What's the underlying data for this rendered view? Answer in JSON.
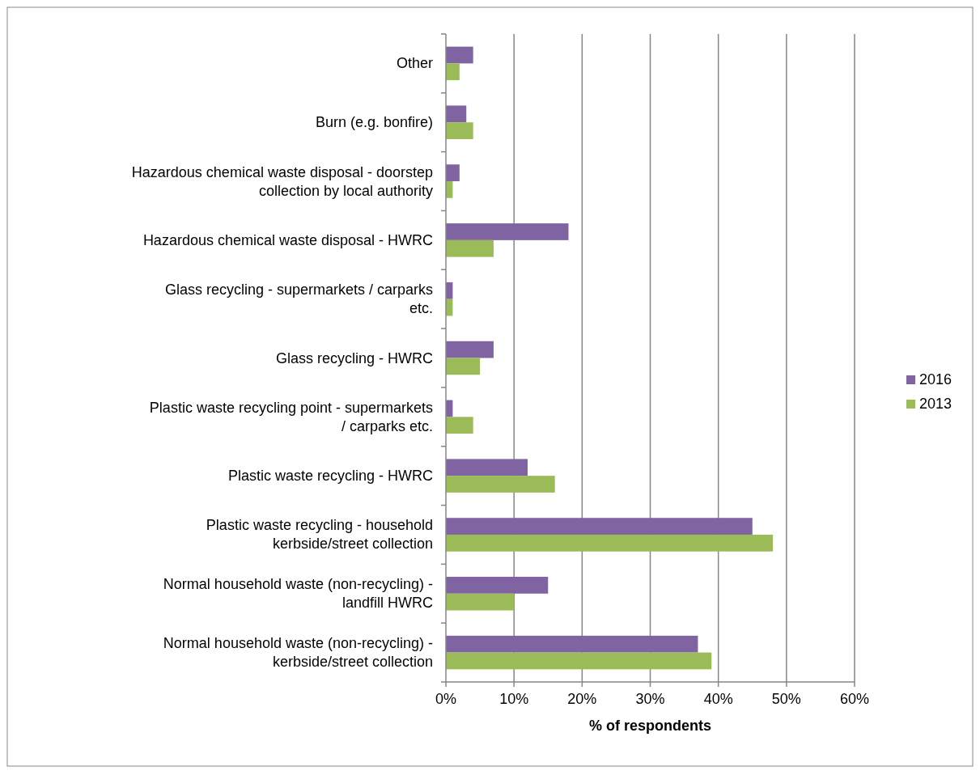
{
  "chart_data": {
    "type": "bar",
    "orientation": "horizontal",
    "xlabel": "% of respondents",
    "categories": [
      "Other",
      "Burn (e.g. bonfire)",
      "Hazardous chemical waste disposal - doorstep collection by local authority",
      "Hazardous chemical waste disposal - HWRC",
      "Glass recycling - supermarkets / carparks etc.",
      "Glass recycling - HWRC",
      "Plastic waste recycling point - supermarkets / carparks etc.",
      "Plastic waste recycling - HWRC",
      "Plastic waste recycling - household kerbside/street collection",
      "Normal household waste (non-recycling) - landfill HWRC",
      "Normal household waste (non-recycling) - kerbside/street collection"
    ],
    "series": [
      {
        "name": "2016",
        "color": "#8064a2",
        "values": [
          4,
          3,
          2,
          18,
          1,
          7,
          1,
          12,
          45,
          15,
          37
        ]
      },
      {
        "name": "2013",
        "color": "#9bbb59",
        "values": [
          2,
          4,
          1,
          7,
          1,
          5,
          4,
          16,
          48,
          10,
          39
        ]
      }
    ],
    "xlim": [
      0,
      60
    ],
    "xticks": [
      {
        "value": 0,
        "label": "0%"
      },
      {
        "value": 10,
        "label": "10%"
      },
      {
        "value": 20,
        "label": "20%"
      },
      {
        "value": 30,
        "label": "30%"
      },
      {
        "value": 40,
        "label": "40%"
      },
      {
        "value": 50,
        "label": "50%"
      },
      {
        "value": 60,
        "label": "60%"
      }
    ],
    "grid": "x",
    "legend": "right"
  }
}
